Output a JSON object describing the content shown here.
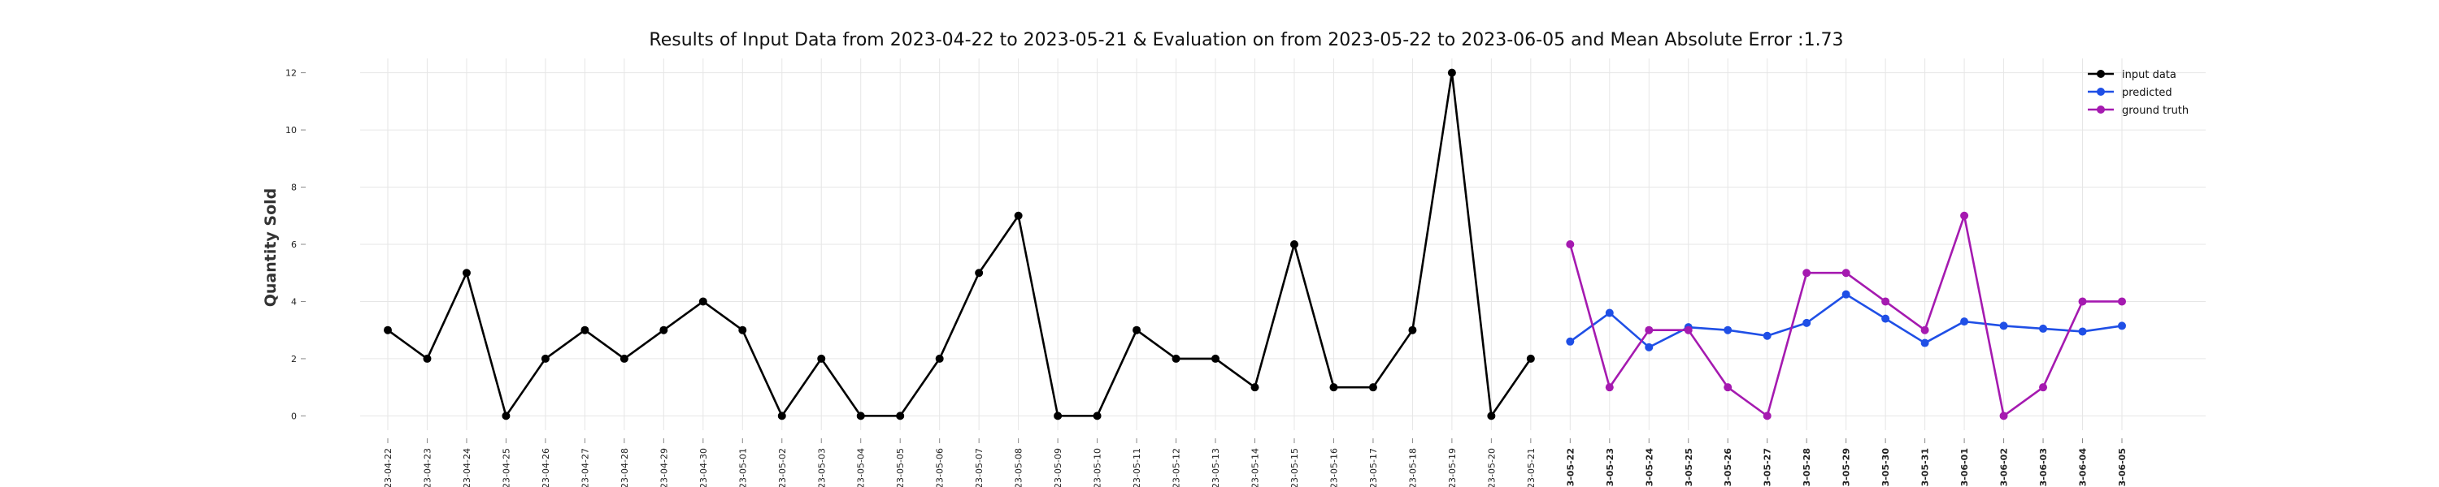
{
  "chart_data": {
    "type": "line",
    "title": "Results of Input Data from 2023-04-22 to 2023-05-21 & Evaluation on from 2023-05-22 to 2023-06-05 and Mean Absolute Error  :1.73",
    "xlabel": "",
    "ylabel": "Quantity Sold",
    "ylim": [
      -0.5,
      12.5
    ],
    "yticks": [
      "0",
      "2",
      "4",
      "6",
      "8",
      "10",
      "12"
    ],
    "grid": true,
    "legend_position": "top-right",
    "x_tick_labels": [
      "-23-04-22",
      "-23-04-23",
      "-23-04-24",
      "-23-04-25",
      "-23-04-26",
      "-23-04-27",
      "-23-04-28",
      "-23-04-29",
      "-23-04-30",
      "-23-05-01",
      "-23-05-02",
      "-23-05-03",
      "-23-05-04",
      "-23-05-05",
      "-23-05-06",
      "-23-05-07",
      "-23-05-08",
      "-23-05-09",
      "-23-05-10",
      "-23-05-11",
      "-23-05-12",
      "-23-05-13",
      "-23-05-14",
      "-23-05-15",
      "-23-05-16",
      "-23-05-17",
      "-23-05-18",
      "-23-05-19",
      "-23-05-20",
      "-23-05-21",
      "-23-05-22",
      "-23-05-23",
      "-23-05-24",
      "-23-05-25",
      "-23-05-26",
      "-23-05-27",
      "-23-05-28",
      "-23-05-29",
      "-23-05-30",
      "-23-05-31",
      "-23-06-01",
      "-23-06-02",
      "-23-06-03",
      "-23-06-04",
      "-23-06-05"
    ],
    "series": [
      {
        "name": "input data",
        "color": "#000000",
        "x": [
          "2023-04-22",
          "2023-04-23",
          "2023-04-24",
          "2023-04-25",
          "2023-04-26",
          "2023-04-27",
          "2023-04-28",
          "2023-04-29",
          "2023-04-30",
          "2023-05-01",
          "2023-05-02",
          "2023-05-03",
          "2023-05-04",
          "2023-05-05",
          "2023-05-06",
          "2023-05-07",
          "2023-05-08",
          "2023-05-09",
          "2023-05-10",
          "2023-05-11",
          "2023-05-12",
          "2023-05-13",
          "2023-05-14",
          "2023-05-15",
          "2023-05-16",
          "2023-05-17",
          "2023-05-18",
          "2023-05-19",
          "2023-05-20",
          "2023-05-21"
        ],
        "values": [
          3,
          2,
          5,
          0,
          2,
          3,
          2,
          3,
          4,
          3,
          0,
          2,
          0,
          0,
          2,
          5,
          7,
          0,
          0,
          3,
          2,
          2,
          1,
          6,
          1,
          1,
          3,
          12,
          0,
          2
        ]
      },
      {
        "name": "predicted",
        "color": "#1f4fe6",
        "x": [
          "2023-05-22",
          "2023-05-23",
          "2023-05-24",
          "2023-05-25",
          "2023-05-26",
          "2023-05-27",
          "2023-05-28",
          "2023-05-29",
          "2023-05-30",
          "2023-05-31",
          "2023-06-01",
          "2023-06-02",
          "2023-06-03",
          "2023-06-04",
          "2023-06-05"
        ],
        "values": [
          2.6,
          3.6,
          2.4,
          3.1,
          3.0,
          2.8,
          3.25,
          4.25,
          3.4,
          2.55,
          3.3,
          3.15,
          3.05,
          2.95,
          3.15
        ]
      },
      {
        "name": "ground truth",
        "color": "#a51ab0",
        "x": [
          "2023-05-22",
          "2023-05-23",
          "2023-05-24",
          "2023-05-25",
          "2023-05-26",
          "2023-05-27",
          "2023-05-28",
          "2023-05-29",
          "2023-05-30",
          "2023-05-31",
          "2023-06-01",
          "2023-06-02",
          "2023-06-03",
          "2023-06-04",
          "2023-06-05"
        ],
        "values": [
          6,
          1,
          3,
          3,
          1,
          0,
          5,
          5,
          4,
          3,
          7,
          0,
          1,
          4,
          4
        ]
      }
    ]
  }
}
